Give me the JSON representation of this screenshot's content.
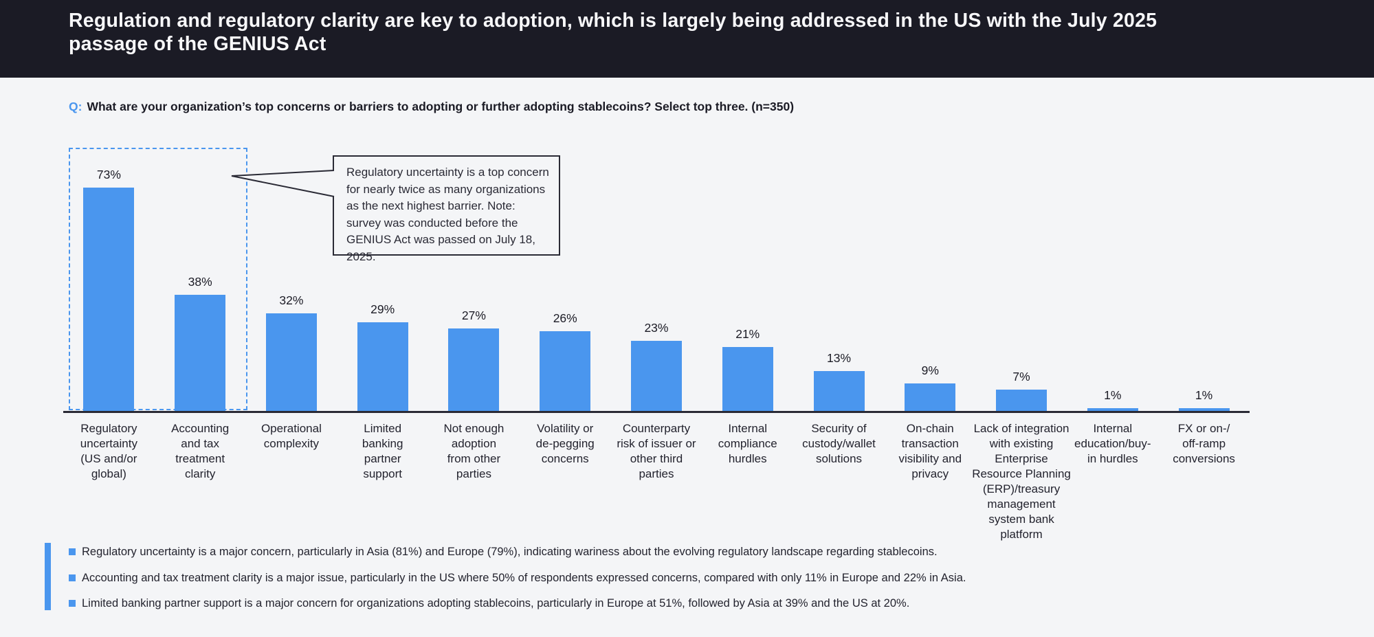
{
  "header": {
    "title": "Regulation and regulatory clarity are key to adoption, which is largely being addressed in the US with the July 2025\npassage of the GENIUS Act"
  },
  "question": {
    "prefix": "Q:",
    "text": "What are your organization’s top concerns or barriers to adopting or further adopting stablecoins? Select top three. (n=350)"
  },
  "chart_data": {
    "type": "bar",
    "categories": [
      "Regulatory\nuncertainty\n(US and/or\nglobal)",
      "Accounting\nand tax\ntreatment\nclarity",
      "Operational\ncomplexity",
      "Limited\nbanking\npartner\nsupport",
      "Not enough\nadoption\nfrom other\nparties",
      "Volatility or\nde-pegging\nconcerns",
      "Counterparty\nrisk of issuer or\nother third\nparties",
      "Internal\ncompliance\nhurdles",
      "Security of\ncustody/wallet\nsolutions",
      "On-chain\ntransaction\nvisibility and\nprivacy",
      "Lack of integration\nwith existing\nEnterprise\nResource Planning\n(ERP)/treasury\nmanagement\nsystem bank\nplatform",
      "Internal\neducation/buy-\nin hurdles",
      "FX or on-/\noff-ramp\nconversions"
    ],
    "values": [
      73,
      38,
      32,
      29,
      27,
      26,
      23,
      21,
      13,
      9,
      7,
      1,
      1
    ],
    "value_label_suffix": "%",
    "title": "",
    "xlabel": "",
    "ylabel": "",
    "ylim": [
      0,
      80
    ],
    "grid": false,
    "legend": "none",
    "bar_color": "#4a96ee",
    "highlighted_bars": [
      0,
      1
    ]
  },
  "annotation": {
    "text": "Regulatory uncertainty is a top concern for nearly twice as many organizations as the next highest barrier. Note: survey was conducted before the GENIUS Act was passed on July 18, 2025."
  },
  "bullets": [
    "Regulatory uncertainty is a major concern, particularly in Asia (81%) and Europe (79%), indicating wariness about the evolving regulatory landscape regarding stablecoins.",
    "Accounting and tax treatment clarity is a major issue, particularly in the US where 50% of respondents expressed concerns, compared with only 11% in Europe and 22% in Asia.",
    "Limited banking partner support is a major concern for organizations adopting stablecoins, particularly in Europe at 51%, followed by Asia at 39% and the US at 20%."
  ],
  "colors": {
    "header_bg": "#1b1b25",
    "page_bg": "#f4f5f7",
    "bar_blue": "#4a96ee",
    "axis": "#2a2a35",
    "text_dark": "#23232e"
  }
}
